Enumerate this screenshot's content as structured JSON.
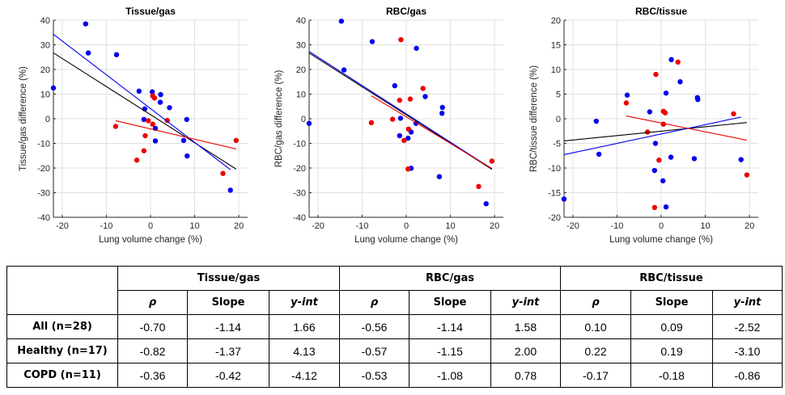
{
  "colors": {
    "healthy": "#0000ee",
    "copd": "#ee0000",
    "all": "#000000",
    "grid": "#e0e0e0"
  },
  "chart_data": [
    {
      "type": "scatter",
      "title": "Tissue/gas",
      "xlabel": "Lung volume change (%)",
      "ylabel": "Tissue/gas difference (%)",
      "xlim": [
        -22,
        22
      ],
      "ylim": [
        -40,
        40
      ],
      "xticks": [
        -20,
        -10,
        0,
        10,
        20
      ],
      "yticks": [
        -40,
        -30,
        -20,
        -10,
        0,
        10,
        20,
        30,
        40
      ],
      "grid": true,
      "series": [
        {
          "name": "Healthy",
          "color": "blue",
          "points": [
            [
              -22,
              12.5
            ],
            [
              -14.7,
              38.5
            ],
            [
              -14.1,
              26.7
            ],
            [
              -7.7,
              26.0
            ],
            [
              -2.6,
              11.2
            ],
            [
              -1.3,
              4.0
            ],
            [
              -1.5,
              -0.3
            ],
            [
              0.4,
              10.9
            ],
            [
              2.3,
              9.8
            ],
            [
              2.2,
              6.7
            ],
            [
              4.3,
              4.5
            ],
            [
              1.1,
              -3.9
            ],
            [
              1.1,
              -9.0
            ],
            [
              8.2,
              -0.3
            ],
            [
              7.5,
              -8.8
            ],
            [
              8.3,
              -15.1
            ],
            [
              18.1,
              -29.0
            ]
          ]
        },
        {
          "name": "COPD",
          "color": "red",
          "points": [
            [
              -7.9,
              -3.1
            ],
            [
              -3.1,
              -16.8
            ],
            [
              -1.5,
              -13.0
            ],
            [
              -1.2,
              -6.9
            ],
            [
              -0.5,
              -0.8
            ],
            [
              0.5,
              9.3
            ],
            [
              0.9,
              8.4
            ],
            [
              0.5,
              -2.2
            ],
            [
              3.8,
              -0.7
            ],
            [
              16.4,
              -22.2
            ],
            [
              19.4,
              -8.8
            ]
          ]
        }
      ],
      "fits": [
        {
          "name": "All",
          "color": "black",
          "x": [
            -22,
            19.4
          ],
          "slope": -1.14,
          "intercept": 1.66
        },
        {
          "name": "Healthy",
          "color": "blue",
          "x": [
            -22,
            18.1
          ],
          "slope": -1.37,
          "intercept": 4.13
        },
        {
          "name": "COPD",
          "color": "red",
          "x": [
            -7.9,
            19.4
          ],
          "slope": -0.42,
          "intercept": -4.12
        }
      ]
    },
    {
      "type": "scatter",
      "title": "RBC/gas",
      "xlabel": "Lung volume change (%)",
      "ylabel": "RBC/gas difference (%)",
      "xlim": [
        -22,
        22
      ],
      "ylim": [
        -40,
        40
      ],
      "xticks": [
        -20,
        -10,
        0,
        10,
        20
      ],
      "yticks": [
        -40,
        -30,
        -20,
        -10,
        0,
        10,
        20,
        30,
        40
      ],
      "grid": true,
      "series": [
        {
          "name": "Healthy",
          "color": "blue",
          "points": [
            [
              -22,
              -1.9
            ],
            [
              -14.7,
              39.6
            ],
            [
              -14.1,
              19.8
            ],
            [
              -7.7,
              31.3
            ],
            [
              -2.6,
              13.4
            ],
            [
              -1.3,
              0.2
            ],
            [
              -1.5,
              -6.9
            ],
            [
              0.4,
              -7.9
            ],
            [
              2.3,
              28.6
            ],
            [
              2.2,
              -1.9
            ],
            [
              4.3,
              9.0
            ],
            [
              1.1,
              -5.4
            ],
            [
              1.1,
              -20.1
            ],
            [
              8.2,
              4.6
            ],
            [
              8.1,
              2.2
            ],
            [
              7.5,
              -23.5
            ],
            [
              18.1,
              -34.5
            ]
          ]
        },
        {
          "name": "COPD",
          "color": "red",
          "points": [
            [
              -7.9,
              -1.6
            ],
            [
              -3.1,
              -0.2
            ],
            [
              -1.5,
              7.5
            ],
            [
              -1.2,
              32.1
            ],
            [
              -0.5,
              -8.8
            ],
            [
              0.9,
              8.0
            ],
            [
              0.5,
              -4.2
            ],
            [
              0.4,
              -20.4
            ],
            [
              3.8,
              12.3
            ],
            [
              16.4,
              -27.5
            ],
            [
              19.4,
              -17.2
            ]
          ]
        }
      ],
      "fits": [
        {
          "name": "All",
          "color": "black",
          "x": [
            -22,
            19.4
          ],
          "slope": -1.14,
          "intercept": 1.58
        },
        {
          "name": "Healthy",
          "color": "blue",
          "x": [
            -22,
            19.4
          ],
          "slope": -1.15,
          "intercept": 2.0
        },
        {
          "name": "COPD",
          "color": "red",
          "x": [
            -7.9,
            19.4
          ],
          "slope": -1.08,
          "intercept": 0.78
        }
      ]
    },
    {
      "type": "scatter",
      "title": "RBC/tissue",
      "xlabel": "Lung volume change (%)",
      "ylabel": "RBC/tissue difference (%)",
      "xlim": [
        -22,
        22
      ],
      "ylim": [
        -20,
        20
      ],
      "xticks": [
        -20,
        -10,
        0,
        10,
        20
      ],
      "yticks": [
        -20,
        -15,
        -10,
        -5,
        0,
        5,
        10,
        15,
        20
      ],
      "grid": true,
      "series": [
        {
          "name": "Healthy",
          "color": "blue",
          "points": [
            [
              -22,
              -16.3
            ],
            [
              -14.7,
              -0.5
            ],
            [
              -14.1,
              -7.2
            ],
            [
              -7.7,
              4.8
            ],
            [
              -2.6,
              1.4
            ],
            [
              -1.3,
              -5.0
            ],
            [
              -1.5,
              -10.5
            ],
            [
              0.4,
              -12.6
            ],
            [
              2.3,
              12.0
            ],
            [
              2.2,
              -7.8
            ],
            [
              4.3,
              7.5
            ],
            [
              1.1,
              5.2
            ],
            [
              1.1,
              -17.9
            ],
            [
              8.2,
              4.3
            ],
            [
              8.3,
              3.9
            ],
            [
              7.5,
              -8.1
            ],
            [
              18.1,
              -8.3
            ]
          ]
        },
        {
          "name": "COPD",
          "color": "red",
          "points": [
            [
              -7.9,
              3.2
            ],
            [
              -3.1,
              -2.7
            ],
            [
              -1.5,
              -18.0
            ],
            [
              -1.2,
              9.0
            ],
            [
              -0.5,
              -8.4
            ],
            [
              0.5,
              1.5
            ],
            [
              0.9,
              1.2
            ],
            [
              0.5,
              -1.1
            ],
            [
              3.8,
              11.5
            ],
            [
              16.4,
              1.0
            ],
            [
              19.4,
              -11.4
            ]
          ]
        }
      ],
      "fits": [
        {
          "name": "All",
          "color": "black",
          "x": [
            -22,
            19.4
          ],
          "slope": 0.09,
          "intercept": -2.52
        },
        {
          "name": "Healthy",
          "color": "blue",
          "x": [
            -22,
            18.1
          ],
          "slope": 0.19,
          "intercept": -3.1
        },
        {
          "name": "COPD",
          "color": "red",
          "x": [
            -7.9,
            19.4
          ],
          "slope": -0.18,
          "intercept": -0.86
        }
      ]
    }
  ],
  "table": {
    "groups": [
      "Tissue/gas",
      "RBC/gas",
      "RBC/tissue"
    ],
    "subheaders": [
      "ρ",
      "Slope",
      "y-int"
    ],
    "rows": [
      {
        "label": "All (n=28)",
        "values": [
          "-0.70",
          "-1.14",
          "1.66",
          "-0.56",
          "-1.14",
          "1.58",
          "0.10",
          "0.09",
          "-2.52"
        ]
      },
      {
        "label": "Healthy (n=17)",
        "values": [
          "-0.82",
          "-1.37",
          "4.13",
          "-0.57",
          "-1.15",
          "2.00",
          "0.22",
          "0.19",
          "-3.10"
        ]
      },
      {
        "label": "COPD (n=11)",
        "values": [
          "-0.36",
          "-0.42",
          "-4.12",
          "-0.53",
          "-1.08",
          "0.78",
          "-0.17",
          "-0.18",
          "-0.86"
        ]
      }
    ]
  }
}
